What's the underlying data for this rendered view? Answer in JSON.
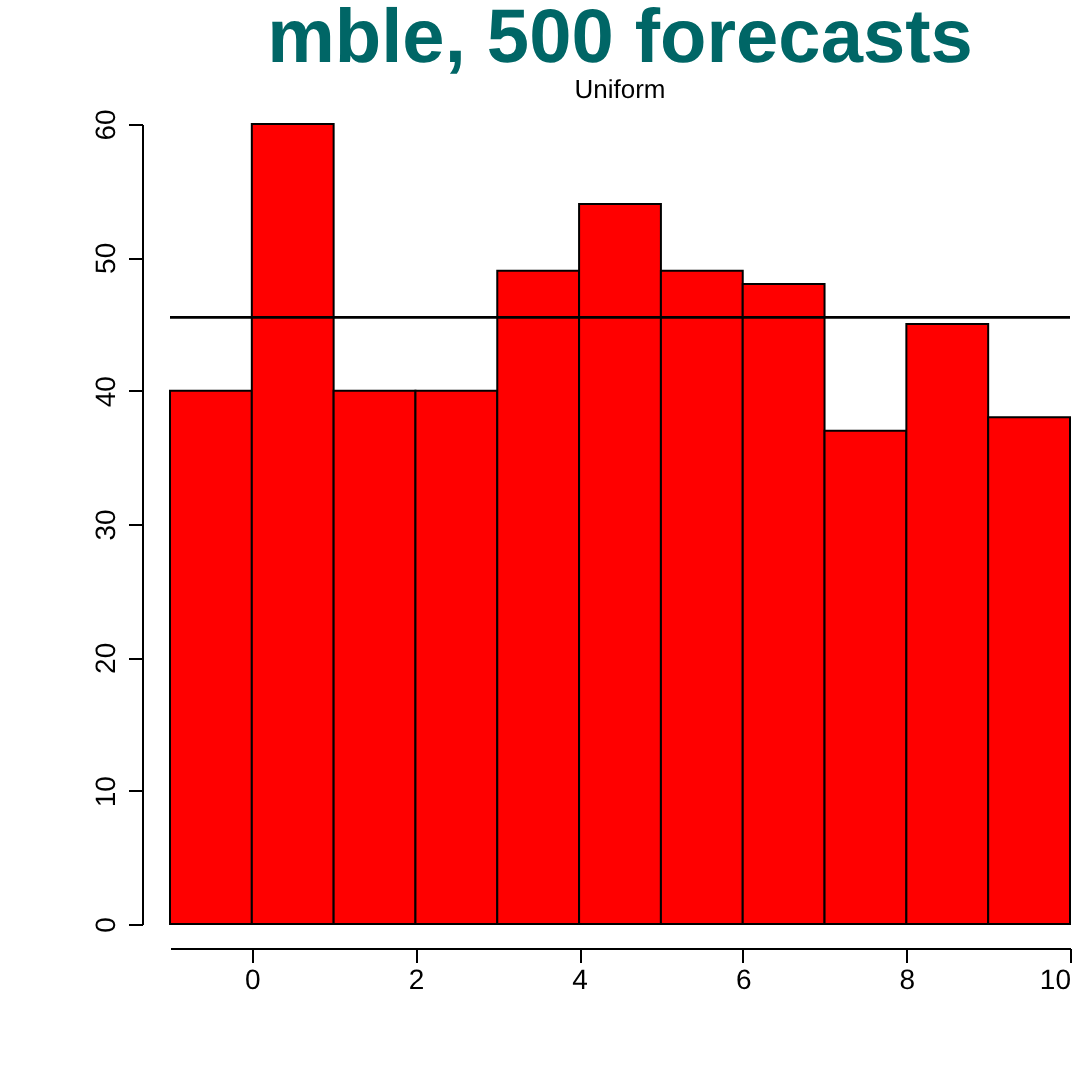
{
  "chart_data": {
    "type": "histogram",
    "title": "mble, 500 forecasts",
    "subtitle": "Uniform",
    "bins": [
      -1,
      0,
      1,
      2,
      3,
      4,
      5,
      6,
      7,
      8,
      9,
      10
    ],
    "values": [
      40,
      60,
      40,
      40,
      49,
      54,
      49,
      48,
      37,
      45,
      38
    ],
    "color": "#ff0000",
    "xlim": [
      -1,
      10
    ],
    "xticks": [
      0,
      2,
      4,
      6,
      8,
      10
    ],
    "ylim": [
      0,
      60
    ],
    "yticks": [
      0,
      10,
      20,
      30,
      40,
      50,
      60
    ],
    "ref_lines": [
      {
        "axis": "y",
        "value": 45.5,
        "color": "#000000"
      }
    ],
    "grid": false
  }
}
